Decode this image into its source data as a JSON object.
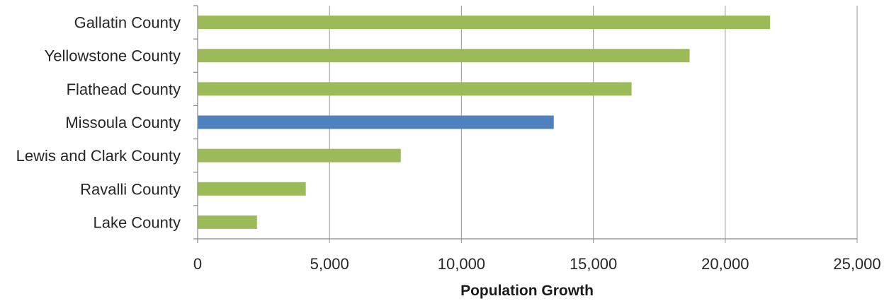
{
  "chart_data": {
    "type": "bar",
    "orientation": "horizontal",
    "categories": [
      "Gallatin County",
      "Yellowstone County",
      "Flathead County",
      "Missoula County",
      "Lewis and Clark County",
      "Ravalli County",
      "Lake County"
    ],
    "values": [
      21700,
      18650,
      16450,
      13500,
      7700,
      4100,
      2250
    ],
    "xlabel": "Population Growth",
    "ylabel": "",
    "xlim": [
      0,
      25000
    ],
    "xticks": [
      0,
      5000,
      10000,
      15000,
      20000,
      25000
    ],
    "xtick_labels": [
      "0",
      "5,000",
      "10,000",
      "15,000",
      "20,000",
      "25,000"
    ],
    "grid": "vertical",
    "legend": "none",
    "colors": {
      "default": "#9bbb59",
      "highlight": "#4f81bd",
      "highlight_category": "Missoula County",
      "grid": "#a6a6a6",
      "axis": "#868686"
    }
  }
}
